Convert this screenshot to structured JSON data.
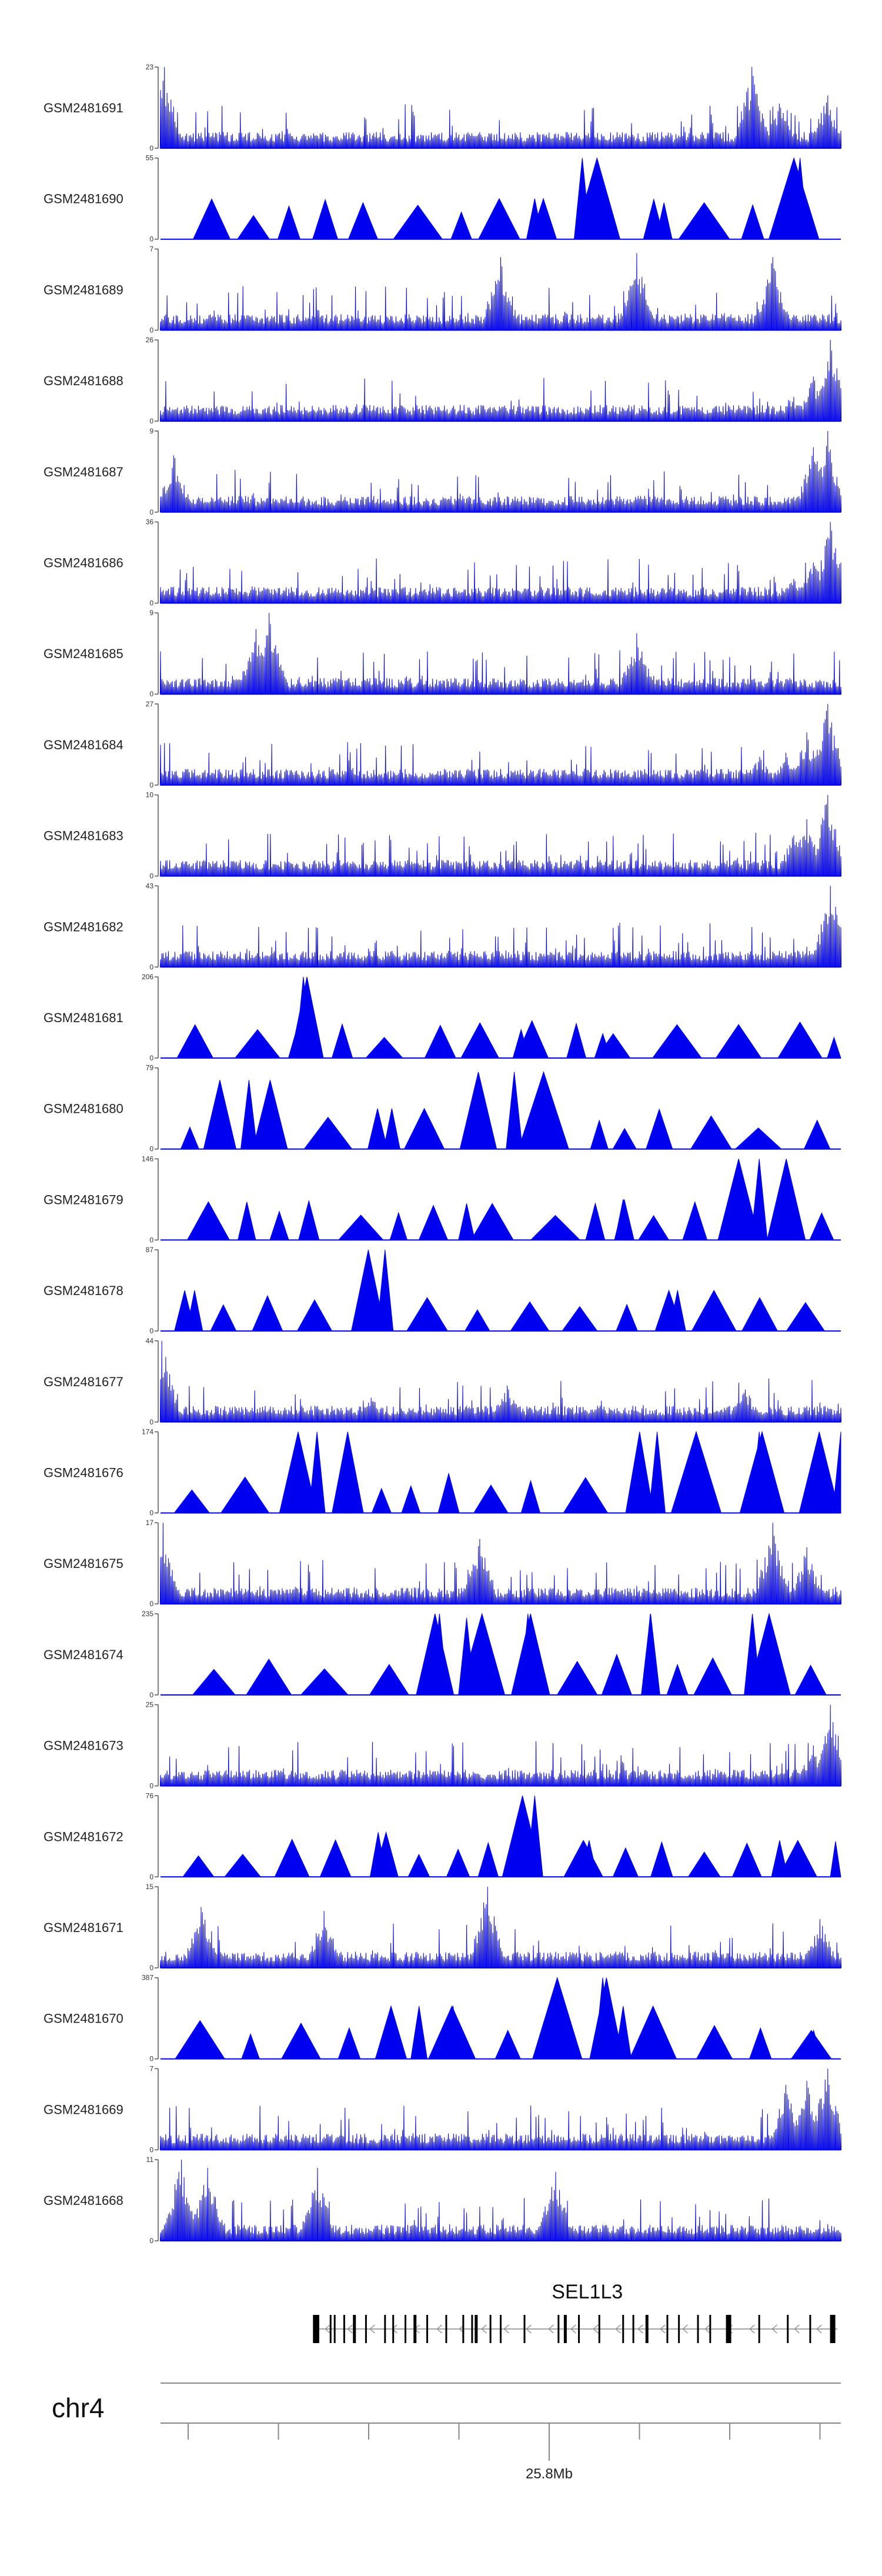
{
  "colors": {
    "signal": "#0000f0",
    "axis": "#555555",
    "gene": "#000000",
    "intron": "#888888"
  },
  "chart_data": {
    "type": "area",
    "tracks": [
      {
        "name": "GSM2481691",
        "ymax": 23,
        "style": "dense",
        "peaks": [
          [
            0.005,
            1.0
          ],
          [
            0.87,
            1.0
          ],
          [
            0.91,
            0.55
          ],
          [
            0.98,
            0.65
          ]
        ]
      },
      {
        "name": "GSM2481690",
        "ymax": 55,
        "style": "sparse",
        "peaks": [
          [
            0.62,
            1.0
          ],
          [
            0.94,
            1.0
          ],
          [
            0.55,
            0.5
          ],
          [
            0.74,
            0.45
          ]
        ]
      },
      {
        "name": "GSM2481689",
        "ymax": 7,
        "style": "dense",
        "peaks": [
          [
            0.5,
            0.9
          ],
          [
            0.7,
            0.95
          ],
          [
            0.9,
            0.9
          ]
        ]
      },
      {
        "name": "GSM2481688",
        "ymax": 26,
        "style": "dense",
        "peaks": [
          [
            0.985,
            1.0
          ],
          [
            0.96,
            0.55
          ],
          [
            0.93,
            0.3
          ]
        ]
      },
      {
        "name": "GSM2481687",
        "ymax": 9,
        "style": "dense",
        "peaks": [
          [
            0.98,
            1.0
          ],
          [
            0.96,
            0.8
          ],
          [
            0.02,
            0.7
          ]
        ]
      },
      {
        "name": "GSM2481686",
        "ymax": 36,
        "style": "dense",
        "peaks": [
          [
            0.985,
            1.0
          ],
          [
            0.96,
            0.5
          ],
          [
            0.93,
            0.3
          ]
        ]
      },
      {
        "name": "GSM2481685",
        "ymax": 9,
        "style": "dense",
        "peaks": [
          [
            0.16,
            1.0
          ],
          [
            0.14,
            0.8
          ],
          [
            0.7,
            0.75
          ]
        ]
      },
      {
        "name": "GSM2481684",
        "ymax": 27,
        "style": "dense",
        "peaks": [
          [
            0.98,
            1.0
          ],
          [
            0.95,
            0.65
          ],
          [
            0.92,
            0.4
          ],
          [
            0.88,
            0.35
          ]
        ]
      },
      {
        "name": "GSM2481683",
        "ymax": 10,
        "style": "dense",
        "peaks": [
          [
            0.98,
            1.0
          ],
          [
            0.95,
            0.7
          ],
          [
            0.93,
            0.5
          ]
        ]
      },
      {
        "name": "GSM2481682",
        "ymax": 43,
        "style": "dense",
        "peaks": [
          [
            0.985,
            1.0
          ],
          [
            0.95,
            0.25
          ],
          [
            0.91,
            0.2
          ]
        ]
      },
      {
        "name": "GSM2481681",
        "ymax": 206,
        "style": "sparse",
        "peaks": [
          [
            0.21,
            1.0
          ],
          [
            0.2,
            0.35
          ],
          [
            0.53,
            0.35
          ],
          [
            0.65,
            0.3
          ]
        ]
      },
      {
        "name": "GSM2481680",
        "ymax": 79,
        "style": "sparse",
        "peaks": [
          [
            0.52,
            0.95
          ],
          [
            0.13,
            0.85
          ],
          [
            0.58,
            0.5
          ],
          [
            0.34,
            0.5
          ]
        ]
      },
      {
        "name": "GSM2481679",
        "ymax": 146,
        "style": "sparse",
        "peaks": [
          [
            0.88,
            1.0
          ],
          [
            0.45,
            0.45
          ],
          [
            0.07,
            0.35
          ],
          [
            0.68,
            0.5
          ]
        ]
      },
      {
        "name": "GSM2481678",
        "ymax": 87,
        "style": "sparse",
        "peaks": [
          [
            0.33,
            1.0
          ],
          [
            0.3,
            0.6
          ],
          [
            0.76,
            0.5
          ],
          [
            0.05,
            0.5
          ]
        ]
      },
      {
        "name": "GSM2481677",
        "ymax": 44,
        "style": "dense",
        "peaks": [
          [
            0.002,
            1.0
          ],
          [
            0.51,
            0.45
          ],
          [
            0.86,
            0.4
          ],
          [
            0.31,
            0.3
          ]
        ]
      },
      {
        "name": "GSM2481676",
        "ymax": 174,
        "style": "sparse",
        "peaks": [
          [
            0.23,
            1.0
          ],
          [
            0.73,
            1.0
          ],
          [
            0.88,
            1.0
          ],
          [
            1.0,
            1.0
          ]
        ]
      },
      {
        "name": "GSM2481675",
        "ymax": 17,
        "style": "dense",
        "peaks": [
          [
            0.003,
            1.0
          ],
          [
            0.9,
            1.0
          ],
          [
            0.47,
            0.8
          ],
          [
            0.95,
            0.7
          ]
        ]
      },
      {
        "name": "GSM2481674",
        "ymax": 235,
        "style": "sparse",
        "peaks": [
          [
            0.41,
            1.0
          ],
          [
            0.54,
            1.0
          ],
          [
            0.87,
            1.0
          ],
          [
            0.72,
            1.0
          ],
          [
            0.45,
            0.95
          ]
        ]
      },
      {
        "name": "GSM2481673",
        "ymax": 25,
        "style": "dense",
        "peaks": [
          [
            0.985,
            1.0
          ],
          [
            0.96,
            0.5
          ]
        ]
      },
      {
        "name": "GSM2481672",
        "ymax": 76,
        "style": "sparse",
        "peaks": [
          [
            0.55,
            1.0
          ],
          [
            0.32,
            0.55
          ],
          [
            0.91,
            0.45
          ],
          [
            0.63,
            0.45
          ]
        ]
      },
      {
        "name": "GSM2481671",
        "ymax": 15,
        "style": "dense",
        "peaks": [
          [
            0.48,
            1.0
          ],
          [
            0.24,
            0.7
          ],
          [
            0.06,
            0.75
          ],
          [
            0.97,
            0.6
          ]
        ]
      },
      {
        "name": "GSM2481670",
        "ymax": 387,
        "style": "sparse",
        "peaks": [
          [
            0.65,
            1.0
          ],
          [
            0.68,
            0.65
          ],
          [
            0.38,
            0.65
          ],
          [
            0.43,
            0.65
          ],
          [
            0.96,
            0.35
          ]
        ]
      },
      {
        "name": "GSM2481669",
        "ymax": 7,
        "style": "dense",
        "peaks": [
          [
            0.98,
            1.0
          ],
          [
            0.95,
            0.85
          ],
          [
            0.92,
            0.8
          ]
        ]
      },
      {
        "name": "GSM2481668",
        "ymax": 11,
        "style": "dense",
        "peaks": [
          [
            0.03,
            1.0
          ],
          [
            0.07,
            0.9
          ],
          [
            0.23,
            0.9
          ],
          [
            0.58,
            0.85
          ]
        ]
      }
    ],
    "gene": {
      "name": "SEL1L3",
      "strand": "-",
      "start_frac": 0.225,
      "end_frac": 0.995,
      "exons": [
        0.228,
        0.232,
        0.25,
        0.256,
        0.27,
        0.285,
        0.302,
        0.33,
        0.342,
        0.36,
        0.374,
        0.392,
        0.42,
        0.445,
        0.458,
        0.464,
        0.485,
        0.5,
        0.535,
        0.585,
        0.595,
        0.615,
        0.645,
        0.68,
        0.695,
        0.715,
        0.745,
        0.762,
        0.79,
        0.808,
        0.835,
        0.88,
        0.922,
        0.955,
        0.988
      ]
    },
    "chromosome": "chr4",
    "genome_axis": {
      "tick_count": 8,
      "labeled_tick": "25.8Mb",
      "labeled_index": 4
    }
  }
}
